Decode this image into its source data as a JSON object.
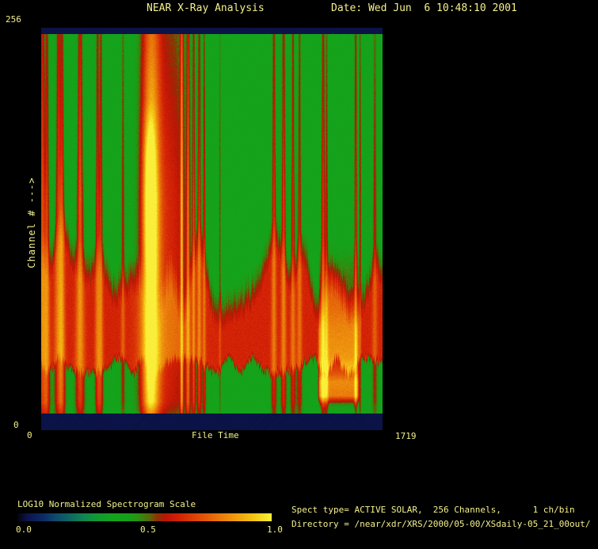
{
  "header": {
    "title": "NEAR X-Ray Analysis",
    "date": "Date: Wed Jun  6 10:48:10 2001"
  },
  "plot": {
    "y_axis": {
      "title": "Channel # --->",
      "max_label": "256",
      "min_label": "0"
    },
    "x_axis": {
      "title": "File Time",
      "min_label": "0",
      "max_label": "1719"
    }
  },
  "colorbar": {
    "label": "LOG10 Normalized Spectrogram Scale",
    "tick_min": "0.0",
    "tick_mid": "0.5",
    "tick_max": "1.0"
  },
  "info": {
    "spect_line": "Spect type= ACTIVE SOLAR,  256 Channels,      1 ch/bin",
    "directory_line": "Directory = /near/xdr/XRS/2000/05-00/XSdaily-05_21_00out/"
  },
  "colors": {
    "background": "#000000",
    "text": "#f4f18c",
    "band_navy": "#0b1348"
  },
  "chart_data": {
    "type": "heatmap",
    "title": "NEAR X-Ray Analysis",
    "xlabel": "File Time",
    "ylabel": "Channel #",
    "x_range": [
      0,
      1719
    ],
    "y_range": [
      0,
      256
    ],
    "channels": 256,
    "ch_per_bin": 1,
    "scale": {
      "label": "LOG10 Normalized Spectrogram Scale",
      "range": [
        0.0,
        1.0
      ],
      "ticks": [
        0.0,
        0.5,
        1.0
      ]
    },
    "colormap_stops": [
      [
        0.0,
        "#04040e"
      ],
      [
        0.035,
        "#0b1348"
      ],
      [
        0.1,
        "#0d2a66"
      ],
      [
        0.15,
        "#0e4a6e"
      ],
      [
        0.2,
        "#0e6462"
      ],
      [
        0.26,
        "#108552"
      ],
      [
        0.32,
        "#129a30"
      ],
      [
        0.38,
        "#14a41c"
      ],
      [
        0.44,
        "#16a018"
      ],
      [
        0.48,
        "#2f8c10"
      ],
      [
        0.52,
        "#5a6608"
      ],
      [
        0.55,
        "#8c3304"
      ],
      [
        0.58,
        "#b81605"
      ],
      [
        0.63,
        "#d21f06"
      ],
      [
        0.7,
        "#dd4307"
      ],
      [
        0.78,
        "#e76f0a"
      ],
      [
        0.86,
        "#f09c10"
      ],
      [
        0.93,
        "#f5c613"
      ],
      [
        1.0,
        "#f9ef3a"
      ]
    ],
    "background": {
      "top_band_end": 0.0157,
      "bottom_band_start": 0.9585,
      "band_value": 0.035,
      "green_value": 0.4,
      "red_value": 0.635,
      "red_zone": [
        0.655,
        0.845
      ]
    },
    "env_standard": [
      [
        0.0157,
        0.62
      ],
      [
        0.25,
        0.85
      ],
      [
        0.42,
        1.0
      ],
      [
        0.8,
        1.0
      ],
      [
        0.93,
        0.85
      ],
      [
        0.9585,
        0.6
      ]
    ],
    "env_core": [
      [
        0.18,
        0
      ],
      [
        0.31,
        0.95
      ],
      [
        0.46,
        1.0
      ],
      [
        0.62,
        0.55
      ],
      [
        0.85,
        0.4
      ],
      [
        0.9585,
        0.25
      ]
    ],
    "block_profile": [
      [
        0.52,
        0
      ],
      [
        0.62,
        0.1
      ],
      [
        0.7,
        0.14
      ],
      [
        0.74,
        0.18
      ],
      [
        0.82,
        0.22
      ],
      [
        0.86,
        0.33
      ],
      [
        0.88,
        0.43
      ],
      [
        0.915,
        0.4
      ],
      [
        0.935,
        0.08
      ],
      [
        0.95,
        0
      ]
    ],
    "events": [
      {
        "type": "streak",
        "x": 6,
        "sigma": 10,
        "intensity": 0.48,
        "spread": 1.2
      },
      {
        "type": "streak",
        "x": 30,
        "sigma": 6,
        "intensity": 0.38,
        "spread": 1.5
      },
      {
        "type": "streak",
        "x": 88,
        "sigma": 9,
        "intensity": 0.44,
        "spread": 1.5
      },
      {
        "type": "streak",
        "x": 106,
        "sigma": 6,
        "intensity": 0.36,
        "spread": 1.8
      },
      {
        "type": "streak",
        "x": 196,
        "sigma": 9,
        "intensity": 0.5,
        "spread": 1.5
      },
      {
        "type": "streak",
        "x": 284,
        "sigma": 6,
        "intensity": 0.38,
        "spread": 1.2
      },
      {
        "type": "streak",
        "x": 301,
        "sigma": 5,
        "intensity": 0.38,
        "spread": 1.5
      },
      {
        "type": "streak",
        "x": 412,
        "sigma": 5,
        "intensity": 0.28,
        "spread": 1.0
      },
      {
        "type": "streak",
        "x": 552,
        "sigma": 34,
        "intensity": 0.8
      },
      {
        "type": "streak",
        "x": 648,
        "sigma": 70,
        "intensity": 0.36,
        "spread": 0.5
      },
      {
        "type": "core",
        "x": 546,
        "sigma": 22,
        "intensity": 0.3
      },
      {
        "type": "streak",
        "x": 708,
        "sigma": 5,
        "intensity": 0.55
      },
      {
        "type": "streak",
        "x": 740,
        "sigma": 5,
        "intensity": 0.42,
        "spread": 0.8
      },
      {
        "type": "streak",
        "x": 768,
        "sigma": 4,
        "intensity": 0.36,
        "spread": 0.8
      },
      {
        "type": "streak",
        "x": 796,
        "sigma": 5,
        "intensity": 0.38,
        "spread": 1.0
      },
      {
        "type": "streak",
        "x": 821,
        "sigma": 4,
        "intensity": 0.33,
        "spread": 1.0
      },
      {
        "type": "streak",
        "x": 900,
        "sigma": 4,
        "intensity": 0.2
      },
      {
        "type": "streak",
        "x": 1172,
        "sigma": 6,
        "intensity": 0.4,
        "spread": 1.3
      },
      {
        "type": "streak",
        "x": 1221,
        "sigma": 6,
        "intensity": 0.43,
        "spread": 1.3
      },
      {
        "type": "streak",
        "x": 1268,
        "sigma": 5,
        "intensity": 0.38,
        "spread": 1.8
      },
      {
        "type": "streak",
        "x": 1301,
        "sigma": 5,
        "intensity": 0.35,
        "spread": 1.8
      },
      {
        "type": "streak",
        "x": 1420,
        "sigma": 6,
        "intensity": 0.42,
        "spread": 0.8
      },
      {
        "type": "streak",
        "x": 1438,
        "sigma": 4,
        "intensity": 0.3,
        "spread": 0.8
      },
      {
        "type": "streak",
        "x": 1584,
        "sigma": 5,
        "intensity": 0.38
      },
      {
        "type": "streak",
        "x": 1606,
        "sigma": 4,
        "intensity": 0.3
      },
      {
        "type": "streak",
        "x": 1680,
        "sigma": 6,
        "intensity": 0.28,
        "spread": 1.2
      },
      {
        "type": "lower",
        "x": 20,
        "sigma": 30,
        "intensity": 0.32
      },
      {
        "type": "lower",
        "x": 100,
        "sigma": 45,
        "intensity": 0.36
      },
      {
        "type": "lower",
        "x": 200,
        "sigma": 40,
        "intensity": 0.32
      },
      {
        "type": "lower",
        "x": 292,
        "sigma": 35,
        "intensity": 0.3
      },
      {
        "type": "lower",
        "x": 800,
        "sigma": 35,
        "intensity": 0.26
      },
      {
        "type": "lower",
        "x": 1195,
        "sigma": 50,
        "intensity": 0.32
      },
      {
        "type": "lower",
        "x": 1300,
        "sigma": 35,
        "intensity": 0.26
      },
      {
        "type": "lower",
        "x": 1690,
        "sigma": 45,
        "intensity": 0.3
      },
      {
        "type": "block",
        "x_start": 1404,
        "x_end": 1592,
        "intensity": 1.0
      }
    ]
  }
}
